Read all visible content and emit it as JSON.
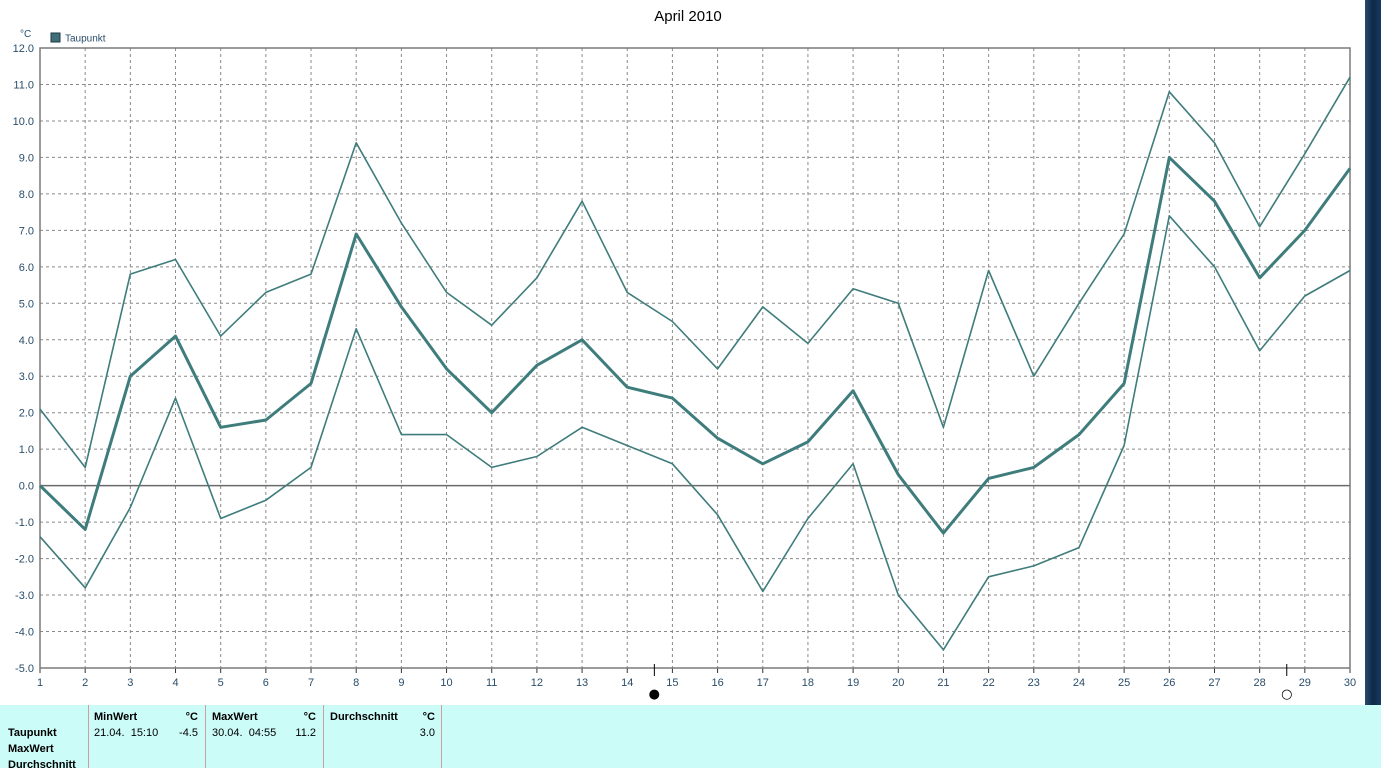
{
  "chart_data": {
    "type": "line",
    "title": "April 2010",
    "ylabel": "°C",
    "xlabel": "",
    "ylim": [
      -5.0,
      12.0
    ],
    "y_ticks": [
      "-5.0",
      "-4.0",
      "-3.0",
      "-2.0",
      "-1.0",
      "0.0",
      "1.0",
      "2.0",
      "3.0",
      "4.0",
      "5.0",
      "6.0",
      "7.0",
      "8.0",
      "9.0",
      "10.0",
      "11.0",
      "12.0"
    ],
    "categories": [
      "1",
      "2",
      "3",
      "4",
      "5",
      "6",
      "7",
      "8",
      "9",
      "10",
      "11",
      "12",
      "13",
      "14",
      "15",
      "16",
      "17",
      "18",
      "19",
      "20",
      "21",
      "22",
      "23",
      "24",
      "25",
      "26",
      "27",
      "28",
      "29",
      "30"
    ],
    "grid": true,
    "legend_position": "top-left",
    "legend": [
      "Taupunkt"
    ],
    "moon_phases": [
      {
        "day_position": 14.6,
        "symbol": "●"
      },
      {
        "day_position": 28.6,
        "symbol": "○"
      }
    ],
    "color": "#3f7c7c",
    "series": [
      {
        "name": "Taupunkt",
        "role": "max",
        "values": [
          2.1,
          0.5,
          5.8,
          6.2,
          4.1,
          5.3,
          5.8,
          9.4,
          7.2,
          5.3,
          4.4,
          5.7,
          7.8,
          5.3,
          4.5,
          3.2,
          4.9,
          3.9,
          5.4,
          5.0,
          1.6,
          5.9,
          3.0,
          5.0,
          6.9,
          10.8,
          9.4,
          7.1,
          9.1,
          11.2
        ]
      },
      {
        "name": "Taupunkt",
        "role": "avg",
        "values": [
          0.0,
          -1.2,
          3.0,
          4.1,
          1.6,
          1.8,
          2.8,
          6.9,
          4.9,
          3.2,
          2.0,
          3.3,
          4.0,
          2.7,
          2.4,
          1.3,
          0.6,
          1.2,
          2.6,
          0.3,
          -1.3,
          0.2,
          0.5,
          1.4,
          2.8,
          9.0,
          7.8,
          5.7,
          7.0,
          8.7
        ]
      },
      {
        "name": "Taupunkt",
        "role": "min",
        "values": [
          -1.4,
          -2.8,
          -0.6,
          2.4,
          -0.9,
          -0.4,
          0.5,
          4.3,
          1.4,
          1.4,
          0.5,
          0.8,
          1.6,
          1.1,
          0.6,
          -0.8,
          -2.9,
          -0.9,
          0.6,
          -3.0,
          -4.5,
          -2.5,
          -2.2,
          -1.7,
          1.1,
          7.4,
          6.0,
          3.7,
          5.2,
          5.9
        ]
      }
    ]
  },
  "stats": {
    "row_labels": [
      "Taupunkt",
      "MaxWert",
      "Durchschnitt"
    ],
    "min": {
      "header": "MinWert",
      "unit": "°C",
      "timestamp": "21.04.  15:10",
      "value": "-4.5"
    },
    "max": {
      "header": "MaxWert",
      "unit": "°C",
      "timestamp": "30.04.  04:55",
      "value": "11.2"
    },
    "avg": {
      "header": "Durchschnitt",
      "unit": "°C",
      "value": "3.0"
    }
  }
}
